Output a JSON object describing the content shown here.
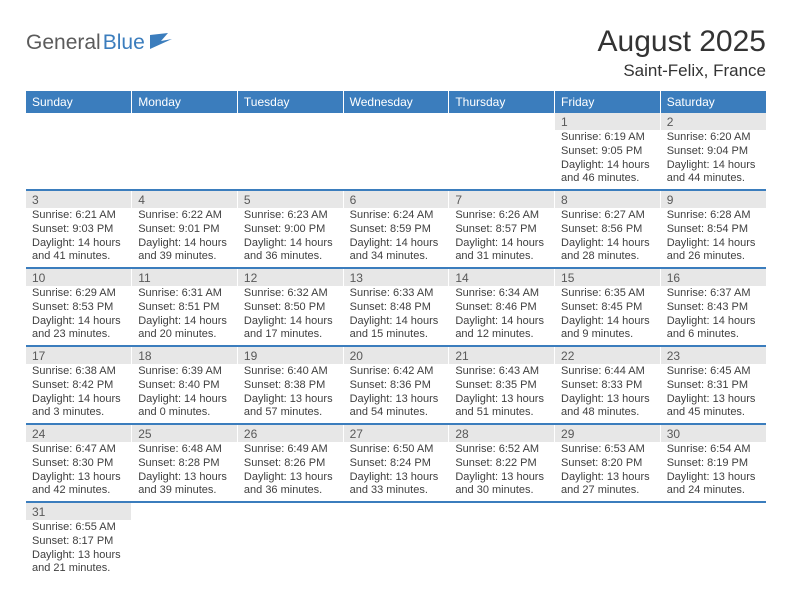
{
  "logo": {
    "part1": "General",
    "part2": "Blue"
  },
  "title": "August 2025",
  "location": "Saint-Felix, France",
  "colors": {
    "header_bg": "#3b7dbd",
    "header_text": "#ffffff",
    "daynum_bg": "#e7e7e7",
    "daynum_text": "#595959",
    "detail_text": "#3f3f3f",
    "border": "#3b7dbd",
    "background": "#ffffff"
  },
  "typography": {
    "title_fontsize": 30,
    "location_fontsize": 17,
    "dayhead_fontsize": 12,
    "daynum_fontsize": 12,
    "detail_fontsize": 11
  },
  "day_headers": [
    "Sunday",
    "Monday",
    "Tuesday",
    "Wednesday",
    "Thursday",
    "Friday",
    "Saturday"
  ],
  "weeks": [
    [
      null,
      null,
      null,
      null,
      null,
      {
        "num": "1",
        "sunrise": "Sunrise: 6:19 AM",
        "sunset": "Sunset: 9:05 PM",
        "daylight1": "Daylight: 14 hours",
        "daylight2": "and 46 minutes."
      },
      {
        "num": "2",
        "sunrise": "Sunrise: 6:20 AM",
        "sunset": "Sunset: 9:04 PM",
        "daylight1": "Daylight: 14 hours",
        "daylight2": "and 44 minutes."
      }
    ],
    [
      {
        "num": "3",
        "sunrise": "Sunrise: 6:21 AM",
        "sunset": "Sunset: 9:03 PM",
        "daylight1": "Daylight: 14 hours",
        "daylight2": "and 41 minutes."
      },
      {
        "num": "4",
        "sunrise": "Sunrise: 6:22 AM",
        "sunset": "Sunset: 9:01 PM",
        "daylight1": "Daylight: 14 hours",
        "daylight2": "and 39 minutes."
      },
      {
        "num": "5",
        "sunrise": "Sunrise: 6:23 AM",
        "sunset": "Sunset: 9:00 PM",
        "daylight1": "Daylight: 14 hours",
        "daylight2": "and 36 minutes."
      },
      {
        "num": "6",
        "sunrise": "Sunrise: 6:24 AM",
        "sunset": "Sunset: 8:59 PM",
        "daylight1": "Daylight: 14 hours",
        "daylight2": "and 34 minutes."
      },
      {
        "num": "7",
        "sunrise": "Sunrise: 6:26 AM",
        "sunset": "Sunset: 8:57 PM",
        "daylight1": "Daylight: 14 hours",
        "daylight2": "and 31 minutes."
      },
      {
        "num": "8",
        "sunrise": "Sunrise: 6:27 AM",
        "sunset": "Sunset: 8:56 PM",
        "daylight1": "Daylight: 14 hours",
        "daylight2": "and 28 minutes."
      },
      {
        "num": "9",
        "sunrise": "Sunrise: 6:28 AM",
        "sunset": "Sunset: 8:54 PM",
        "daylight1": "Daylight: 14 hours",
        "daylight2": "and 26 minutes."
      }
    ],
    [
      {
        "num": "10",
        "sunrise": "Sunrise: 6:29 AM",
        "sunset": "Sunset: 8:53 PM",
        "daylight1": "Daylight: 14 hours",
        "daylight2": "and 23 minutes."
      },
      {
        "num": "11",
        "sunrise": "Sunrise: 6:31 AM",
        "sunset": "Sunset: 8:51 PM",
        "daylight1": "Daylight: 14 hours",
        "daylight2": "and 20 minutes."
      },
      {
        "num": "12",
        "sunrise": "Sunrise: 6:32 AM",
        "sunset": "Sunset: 8:50 PM",
        "daylight1": "Daylight: 14 hours",
        "daylight2": "and 17 minutes."
      },
      {
        "num": "13",
        "sunrise": "Sunrise: 6:33 AM",
        "sunset": "Sunset: 8:48 PM",
        "daylight1": "Daylight: 14 hours",
        "daylight2": "and 15 minutes."
      },
      {
        "num": "14",
        "sunrise": "Sunrise: 6:34 AM",
        "sunset": "Sunset: 8:46 PM",
        "daylight1": "Daylight: 14 hours",
        "daylight2": "and 12 minutes."
      },
      {
        "num": "15",
        "sunrise": "Sunrise: 6:35 AM",
        "sunset": "Sunset: 8:45 PM",
        "daylight1": "Daylight: 14 hours",
        "daylight2": "and 9 minutes."
      },
      {
        "num": "16",
        "sunrise": "Sunrise: 6:37 AM",
        "sunset": "Sunset: 8:43 PM",
        "daylight1": "Daylight: 14 hours",
        "daylight2": "and 6 minutes."
      }
    ],
    [
      {
        "num": "17",
        "sunrise": "Sunrise: 6:38 AM",
        "sunset": "Sunset: 8:42 PM",
        "daylight1": "Daylight: 14 hours",
        "daylight2": "and 3 minutes."
      },
      {
        "num": "18",
        "sunrise": "Sunrise: 6:39 AM",
        "sunset": "Sunset: 8:40 PM",
        "daylight1": "Daylight: 14 hours",
        "daylight2": "and 0 minutes."
      },
      {
        "num": "19",
        "sunrise": "Sunrise: 6:40 AM",
        "sunset": "Sunset: 8:38 PM",
        "daylight1": "Daylight: 13 hours",
        "daylight2": "and 57 minutes."
      },
      {
        "num": "20",
        "sunrise": "Sunrise: 6:42 AM",
        "sunset": "Sunset: 8:36 PM",
        "daylight1": "Daylight: 13 hours",
        "daylight2": "and 54 minutes."
      },
      {
        "num": "21",
        "sunrise": "Sunrise: 6:43 AM",
        "sunset": "Sunset: 8:35 PM",
        "daylight1": "Daylight: 13 hours",
        "daylight2": "and 51 minutes."
      },
      {
        "num": "22",
        "sunrise": "Sunrise: 6:44 AM",
        "sunset": "Sunset: 8:33 PM",
        "daylight1": "Daylight: 13 hours",
        "daylight2": "and 48 minutes."
      },
      {
        "num": "23",
        "sunrise": "Sunrise: 6:45 AM",
        "sunset": "Sunset: 8:31 PM",
        "daylight1": "Daylight: 13 hours",
        "daylight2": "and 45 minutes."
      }
    ],
    [
      {
        "num": "24",
        "sunrise": "Sunrise: 6:47 AM",
        "sunset": "Sunset: 8:30 PM",
        "daylight1": "Daylight: 13 hours",
        "daylight2": "and 42 minutes."
      },
      {
        "num": "25",
        "sunrise": "Sunrise: 6:48 AM",
        "sunset": "Sunset: 8:28 PM",
        "daylight1": "Daylight: 13 hours",
        "daylight2": "and 39 minutes."
      },
      {
        "num": "26",
        "sunrise": "Sunrise: 6:49 AM",
        "sunset": "Sunset: 8:26 PM",
        "daylight1": "Daylight: 13 hours",
        "daylight2": "and 36 minutes."
      },
      {
        "num": "27",
        "sunrise": "Sunrise: 6:50 AM",
        "sunset": "Sunset: 8:24 PM",
        "daylight1": "Daylight: 13 hours",
        "daylight2": "and 33 minutes."
      },
      {
        "num": "28",
        "sunrise": "Sunrise: 6:52 AM",
        "sunset": "Sunset: 8:22 PM",
        "daylight1": "Daylight: 13 hours",
        "daylight2": "and 30 minutes."
      },
      {
        "num": "29",
        "sunrise": "Sunrise: 6:53 AM",
        "sunset": "Sunset: 8:20 PM",
        "daylight1": "Daylight: 13 hours",
        "daylight2": "and 27 minutes."
      },
      {
        "num": "30",
        "sunrise": "Sunrise: 6:54 AM",
        "sunset": "Sunset: 8:19 PM",
        "daylight1": "Daylight: 13 hours",
        "daylight2": "and 24 minutes."
      }
    ],
    [
      {
        "num": "31",
        "sunrise": "Sunrise: 6:55 AM",
        "sunset": "Sunset: 8:17 PM",
        "daylight1": "Daylight: 13 hours",
        "daylight2": "and 21 minutes."
      },
      null,
      null,
      null,
      null,
      null,
      null
    ]
  ]
}
